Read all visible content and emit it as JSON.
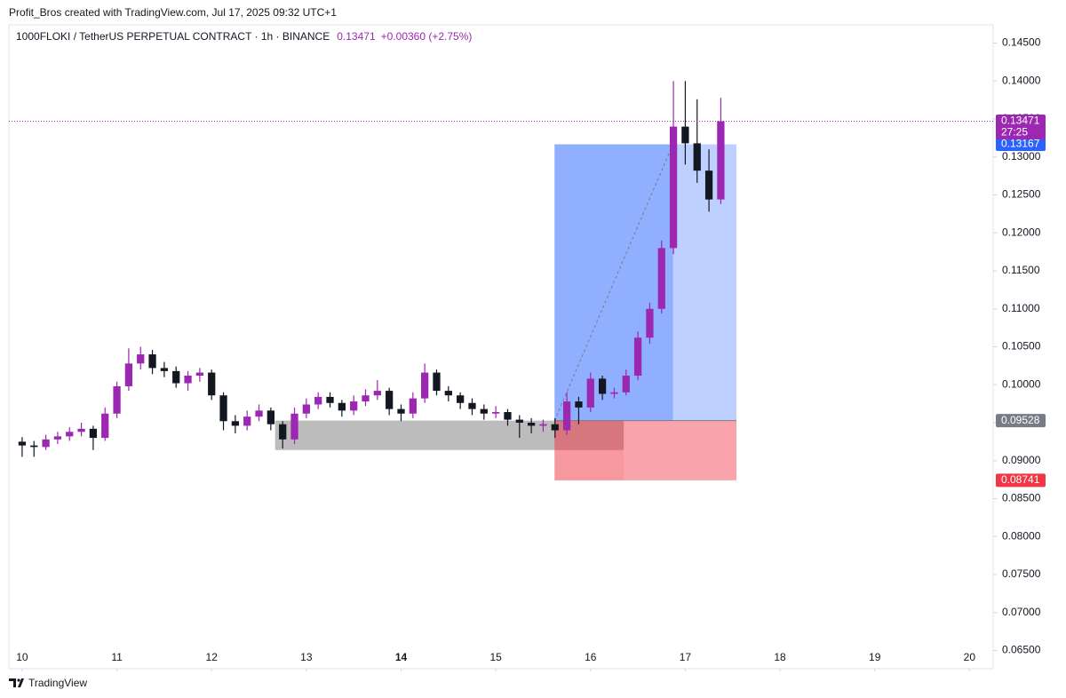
{
  "chart_data": {
    "type": "candlestick",
    "attribution": "Profit_Bros created with TradingView.com, Jul 17, 2025 09:32 UTC+1",
    "title": "1000FLOKI / TetherUS PERPETUAL CONTRACT · 1h · BINANCE",
    "last_price": 0.13471,
    "change_label": "+0.00360 (+2.75%)",
    "countdown": "27:25",
    "brand": "TradingView",
    "up_color": "#9c27b0",
    "down_color": "#131722",
    "x": [
      10,
      10.125,
      10.25,
      10.375,
      10.5,
      10.625,
      10.75,
      10.875,
      11,
      11.125,
      11.25,
      11.375,
      11.5,
      11.625,
      11.75,
      11.875,
      12,
      12.125,
      12.25,
      12.375,
      12.5,
      12.625,
      12.75,
      12.875,
      13,
      13.125,
      13.25,
      13.375,
      13.5,
      13.625,
      13.75,
      13.875,
      14,
      14.125,
      14.25,
      14.375,
      14.5,
      14.625,
      14.75,
      14.875,
      15,
      15.125,
      15.25,
      15.375,
      15.5,
      15.625,
      15.75,
      15.875,
      16,
      16.125,
      16.25,
      16.375,
      16.5,
      16.625,
      16.75,
      16.875,
      17,
      17.125,
      17.25,
      17.375
    ],
    "open": [
      0.0925,
      0.092,
      0.0918,
      0.0928,
      0.0932,
      0.0938,
      0.0942,
      0.093,
      0.0962,
      0.0998,
      0.1028,
      0.104,
      0.1022,
      0.1018,
      0.1002,
      0.1012,
      0.1016,
      0.0986,
      0.0952,
      0.0946,
      0.0958,
      0.0966,
      0.0948,
      0.0928,
      0.0962,
      0.0974,
      0.0984,
      0.0976,
      0.0966,
      0.0978,
      0.0986,
      0.0992,
      0.0968,
      0.0962,
      0.0982,
      0.1016,
      0.0992,
      0.0986,
      0.0976,
      0.0968,
      0.0962,
      0.0964,
      0.0954,
      0.095,
      0.0946,
      0.0948,
      0.094,
      0.0978,
      0.097,
      0.1008,
      0.0988,
      0.099,
      0.1012,
      0.1062,
      0.11,
      0.118,
      0.134,
      0.1318,
      0.1282,
      0.1244
    ],
    "high": [
      0.0931,
      0.0926,
      0.0934,
      0.0938,
      0.0944,
      0.095,
      0.0946,
      0.097,
      0.1004,
      0.1048,
      0.105,
      0.1046,
      0.103,
      0.1024,
      0.1018,
      0.1022,
      0.102,
      0.099,
      0.096,
      0.0966,
      0.0974,
      0.097,
      0.0952,
      0.097,
      0.0982,
      0.099,
      0.099,
      0.098,
      0.0986,
      0.0994,
      0.1006,
      0.0996,
      0.0974,
      0.099,
      0.1028,
      0.102,
      0.0998,
      0.099,
      0.0982,
      0.0974,
      0.0972,
      0.0968,
      0.096,
      0.0956,
      0.0954,
      0.0956,
      0.099,
      0.0984,
      0.1016,
      0.1012,
      0.0996,
      0.102,
      0.107,
      0.1108,
      0.119,
      0.14,
      0.14,
      0.1376,
      0.131,
      0.1378
    ],
    "low": [
      0.0905,
      0.0905,
      0.0914,
      0.0922,
      0.0926,
      0.0932,
      0.0914,
      0.0926,
      0.0956,
      0.0992,
      0.102,
      0.1014,
      0.101,
      0.0996,
      0.0992,
      0.1004,
      0.098,
      0.094,
      0.0936,
      0.094,
      0.0952,
      0.094,
      0.0916,
      0.0922,
      0.0956,
      0.0968,
      0.097,
      0.0958,
      0.096,
      0.0972,
      0.098,
      0.096,
      0.0952,
      0.0956,
      0.0976,
      0.0986,
      0.0978,
      0.0968,
      0.096,
      0.0954,
      0.0956,
      0.0946,
      0.093,
      0.0936,
      0.0938,
      0.093,
      0.0934,
      0.0948,
      0.0964,
      0.098,
      0.0982,
      0.0986,
      0.1006,
      0.1054,
      0.1094,
      0.1172,
      0.129,
      0.1266,
      0.1228,
      0.1238
    ],
    "close": [
      0.092,
      0.0918,
      0.0928,
      0.0932,
      0.0938,
      0.0942,
      0.093,
      0.0962,
      0.0998,
      0.1028,
      0.104,
      0.1022,
      0.1018,
      0.1002,
      0.1012,
      0.1016,
      0.0986,
      0.0952,
      0.0946,
      0.0958,
      0.0966,
      0.0948,
      0.0928,
      0.0962,
      0.0974,
      0.0984,
      0.0976,
      0.0966,
      0.0978,
      0.0986,
      0.0992,
      0.0968,
      0.0962,
      0.0982,
      0.1016,
      0.0992,
      0.0986,
      0.0976,
      0.0968,
      0.0962,
      0.0964,
      0.0954,
      0.095,
      0.0946,
      0.0948,
      0.094,
      0.0978,
      0.097,
      0.1008,
      0.0988,
      0.099,
      0.1012,
      0.1062,
      0.11,
      0.118,
      0.134,
      0.1318,
      0.1282,
      0.1244,
      0.13471
    ],
    "xlim": [
      9.86,
      20.25
    ],
    "xticks": [
      10,
      11,
      12,
      13,
      14,
      15,
      16,
      17,
      18,
      19,
      20
    ],
    "bold_xtick": 14,
    "ylim": [
      0.0626,
      0.1474
    ],
    "yticks": [
      {
        "value": 0.065,
        "label": "0.06500"
      },
      {
        "value": 0.07,
        "label": "0.07000"
      },
      {
        "value": 0.075,
        "label": "0.07500"
      },
      {
        "value": 0.08,
        "label": "0.08000"
      },
      {
        "value": 0.085,
        "label": "0.08500"
      },
      {
        "value": 0.09,
        "label": "0.09000"
      },
      {
        "value": 0.095,
        "label": "0.09500"
      },
      {
        "value": 0.1,
        "label": "0.10000"
      },
      {
        "value": 0.105,
        "label": "0.10500"
      },
      {
        "value": 0.11,
        "label": "0.11000"
      },
      {
        "value": 0.115,
        "label": "0.11500"
      },
      {
        "value": 0.12,
        "label": "0.12000"
      },
      {
        "value": 0.125,
        "label": "0.12500"
      },
      {
        "value": 0.13,
        "label": "0.13000"
      },
      {
        "value": 0.135,
        "label": "0.13500"
      },
      {
        "value": 0.14,
        "label": "0.14000"
      },
      {
        "value": 0.145,
        "label": "0.14500"
      }
    ],
    "grid": false,
    "zone": {
      "x": [
        12.67,
        16.35
      ],
      "y": [
        0.0914,
        0.09528
      ],
      "color": "#a0a0a0"
    },
    "long_position": {
      "x": [
        15.62,
        17.54
      ],
      "fill_end_x": 16.87,
      "stop_fill_end_x": 16.35,
      "entry": 0.09528,
      "target": 0.13167,
      "stop": 0.08741,
      "entry_color": "#787b86",
      "target_color": "#2962ff",
      "stop_color": "#f23645"
    }
  }
}
